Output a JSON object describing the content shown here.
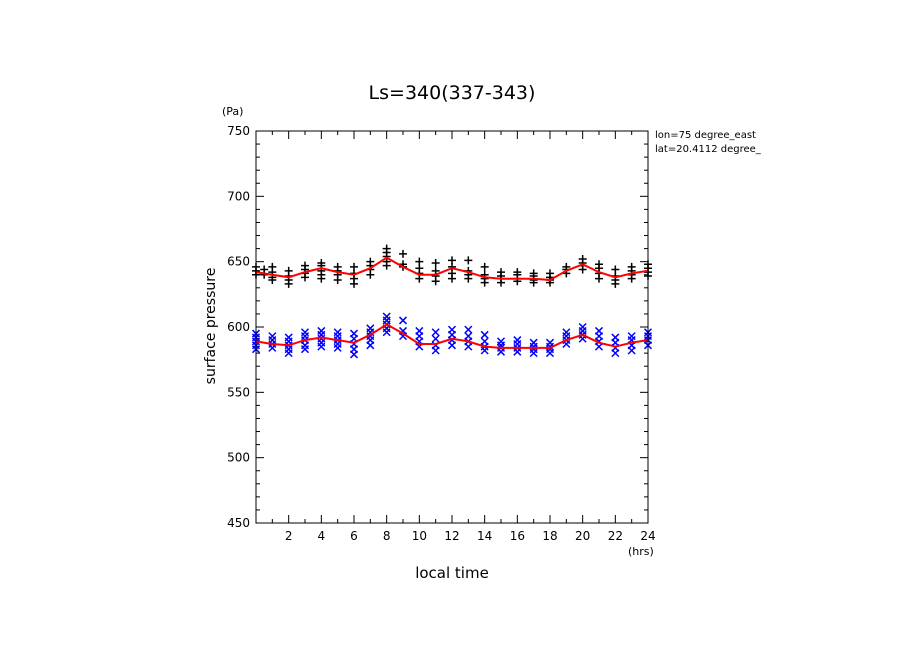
{
  "chart_data": {
    "type": "scatter",
    "title": "Ls=340(337-343)",
    "xlabel": "local time",
    "x_unit": "(hrs)",
    "ylabel": "surface pressure",
    "y_unit": "(Pa)",
    "xlim": [
      0,
      24
    ],
    "ylim": [
      450,
      750
    ],
    "x_ticks": [
      2,
      4,
      6,
      8,
      10,
      12,
      14,
      16,
      18,
      20,
      22,
      24
    ],
    "y_ticks": [
      450,
      500,
      550,
      600,
      650,
      700,
      750
    ],
    "annotations": [
      "lon=75 degree_east",
      "lat=20.4112 degree_"
    ],
    "series": [
      {
        "marker": "+",
        "color": "#000000",
        "points": [
          [
            0,
            646
          ],
          [
            0,
            643
          ],
          [
            0,
            640
          ],
          [
            0.5,
            644
          ],
          [
            0.5,
            640
          ],
          [
            1,
            646
          ],
          [
            1,
            642
          ],
          [
            1,
            638
          ],
          [
            1,
            636
          ],
          [
            2,
            643
          ],
          [
            2,
            639
          ],
          [
            2,
            636
          ],
          [
            2,
            633
          ],
          [
            3,
            647
          ],
          [
            3,
            644
          ],
          [
            3,
            641
          ],
          [
            3,
            638
          ],
          [
            4,
            649
          ],
          [
            4,
            647
          ],
          [
            4,
            643
          ],
          [
            4,
            640
          ],
          [
            4,
            637
          ],
          [
            5,
            646
          ],
          [
            5,
            643
          ],
          [
            5,
            640
          ],
          [
            5,
            636
          ],
          [
            6,
            646
          ],
          [
            6,
            641
          ],
          [
            6,
            637
          ],
          [
            6,
            633
          ],
          [
            7,
            650
          ],
          [
            7,
            647
          ],
          [
            7,
            644
          ],
          [
            7,
            640
          ],
          [
            8,
            660
          ],
          [
            8,
            657
          ],
          [
            8,
            654
          ],
          [
            8,
            650
          ],
          [
            8,
            647
          ],
          [
            9,
            656
          ],
          [
            9,
            648
          ],
          [
            9,
            646
          ],
          [
            10,
            650
          ],
          [
            10,
            645
          ],
          [
            10,
            641
          ],
          [
            10,
            637
          ],
          [
            11,
            649
          ],
          [
            11,
            643
          ],
          [
            11,
            639
          ],
          [
            11,
            635
          ],
          [
            12,
            651
          ],
          [
            12,
            646
          ],
          [
            12,
            641
          ],
          [
            12,
            637
          ],
          [
            13,
            651
          ],
          [
            13,
            643
          ],
          [
            13,
            640
          ],
          [
            13,
            637
          ],
          [
            14,
            646
          ],
          [
            14,
            640
          ],
          [
            14,
            637
          ],
          [
            14,
            634
          ],
          [
            15,
            642
          ],
          [
            15,
            639
          ],
          [
            15,
            637
          ],
          [
            15,
            634
          ],
          [
            16,
            642
          ],
          [
            16,
            640
          ],
          [
            16,
            637
          ],
          [
            16,
            635
          ],
          [
            17,
            641
          ],
          [
            17,
            639
          ],
          [
            17,
            636
          ],
          [
            17,
            634
          ],
          [
            18,
            641
          ],
          [
            18,
            638
          ],
          [
            18,
            636
          ],
          [
            18,
            634
          ],
          [
            19,
            646
          ],
          [
            19,
            644
          ],
          [
            19,
            641
          ],
          [
            20,
            652
          ],
          [
            20,
            649
          ],
          [
            20,
            647
          ],
          [
            20,
            644
          ],
          [
            21,
            648
          ],
          [
            21,
            645
          ],
          [
            21,
            641
          ],
          [
            21,
            637
          ],
          [
            22,
            644
          ],
          [
            22,
            639
          ],
          [
            22,
            636
          ],
          [
            22,
            633
          ],
          [
            23,
            646
          ],
          [
            23,
            643
          ],
          [
            23,
            640
          ],
          [
            23,
            637
          ],
          [
            24,
            648
          ],
          [
            24,
            645
          ],
          [
            24,
            642
          ],
          [
            24,
            639
          ]
        ]
      },
      {
        "marker": "x",
        "color": "#0000ff",
        "points": [
          [
            0,
            595
          ],
          [
            0,
            592
          ],
          [
            0,
            589
          ],
          [
            0,
            586
          ],
          [
            0,
            583
          ],
          [
            1,
            593
          ],
          [
            1,
            590
          ],
          [
            1,
            587
          ],
          [
            1,
            584
          ],
          [
            2,
            592
          ],
          [
            2,
            589
          ],
          [
            2,
            586
          ],
          [
            2,
            583
          ],
          [
            2,
            580
          ],
          [
            3,
            596
          ],
          [
            3,
            593
          ],
          [
            3,
            590
          ],
          [
            3,
            586
          ],
          [
            3,
            583
          ],
          [
            4,
            597
          ],
          [
            4,
            594
          ],
          [
            4,
            591
          ],
          [
            4,
            588
          ],
          [
            4,
            585
          ],
          [
            5,
            596
          ],
          [
            5,
            593
          ],
          [
            5,
            590
          ],
          [
            5,
            587
          ],
          [
            5,
            584
          ],
          [
            6,
            595
          ],
          [
            6,
            591
          ],
          [
            6,
            587
          ],
          [
            6,
            583
          ],
          [
            6,
            579
          ],
          [
            7,
            599
          ],
          [
            7,
            596
          ],
          [
            7,
            593
          ],
          [
            7,
            590
          ],
          [
            7,
            586
          ],
          [
            8,
            608
          ],
          [
            8,
            605
          ],
          [
            8,
            602
          ],
          [
            8,
            599
          ],
          [
            8,
            596
          ],
          [
            9,
            605
          ],
          [
            9,
            597
          ],
          [
            9,
            593
          ],
          [
            10,
            597
          ],
          [
            10,
            593
          ],
          [
            10,
            589
          ],
          [
            10,
            585
          ],
          [
            11,
            596
          ],
          [
            11,
            591
          ],
          [
            11,
            586
          ],
          [
            11,
            582
          ],
          [
            12,
            598
          ],
          [
            12,
            594
          ],
          [
            12,
            590
          ],
          [
            12,
            586
          ],
          [
            13,
            598
          ],
          [
            13,
            593
          ],
          [
            13,
            589
          ],
          [
            13,
            585
          ],
          [
            14,
            594
          ],
          [
            14,
            589
          ],
          [
            14,
            585
          ],
          [
            14,
            582
          ],
          [
            15,
            589
          ],
          [
            15,
            586
          ],
          [
            15,
            584
          ],
          [
            15,
            581
          ],
          [
            16,
            590
          ],
          [
            16,
            587
          ],
          [
            16,
            584
          ],
          [
            16,
            581
          ],
          [
            17,
            588
          ],
          [
            17,
            585
          ],
          [
            17,
            583
          ],
          [
            17,
            580
          ],
          [
            18,
            588
          ],
          [
            18,
            585
          ],
          [
            18,
            583
          ],
          [
            18,
            580
          ],
          [
            19,
            596
          ],
          [
            19,
            593
          ],
          [
            19,
            590
          ],
          [
            19,
            587
          ],
          [
            20,
            600
          ],
          [
            20,
            597
          ],
          [
            20,
            594
          ],
          [
            20,
            591
          ],
          [
            21,
            597
          ],
          [
            21,
            593
          ],
          [
            21,
            589
          ],
          [
            21,
            585
          ],
          [
            22,
            592
          ],
          [
            22,
            588
          ],
          [
            22,
            584
          ],
          [
            22,
            580
          ],
          [
            23,
            593
          ],
          [
            23,
            590
          ],
          [
            23,
            586
          ],
          [
            23,
            582
          ],
          [
            24,
            596
          ],
          [
            24,
            593
          ],
          [
            24,
            590
          ],
          [
            24,
            586
          ]
        ]
      },
      {
        "marker": "line",
        "color": "#ff0000",
        "x": [
          0,
          1,
          2,
          3,
          4,
          5,
          6,
          7,
          8,
          9,
          10,
          11,
          12,
          13,
          14,
          15,
          16,
          17,
          18,
          19,
          20,
          21,
          22,
          23,
          24
        ],
        "values": [
          642,
          640,
          638,
          642,
          645,
          642,
          640,
          645,
          653,
          646,
          640,
          640,
          645,
          642,
          638,
          637,
          637,
          637,
          636,
          643,
          648,
          642,
          638,
          641,
          643
        ]
      },
      {
        "marker": "line",
        "color": "#ff0000",
        "x": [
          0,
          1,
          2,
          3,
          4,
          5,
          6,
          7,
          8,
          9,
          10,
          11,
          12,
          13,
          14,
          15,
          16,
          17,
          18,
          19,
          20,
          21,
          22,
          23,
          24
        ],
        "values": [
          589,
          587,
          586,
          590,
          592,
          590,
          588,
          594,
          602,
          595,
          587,
          587,
          591,
          589,
          585,
          584,
          584,
          584,
          584,
          590,
          594,
          588,
          585,
          588,
          590
        ]
      }
    ]
  }
}
